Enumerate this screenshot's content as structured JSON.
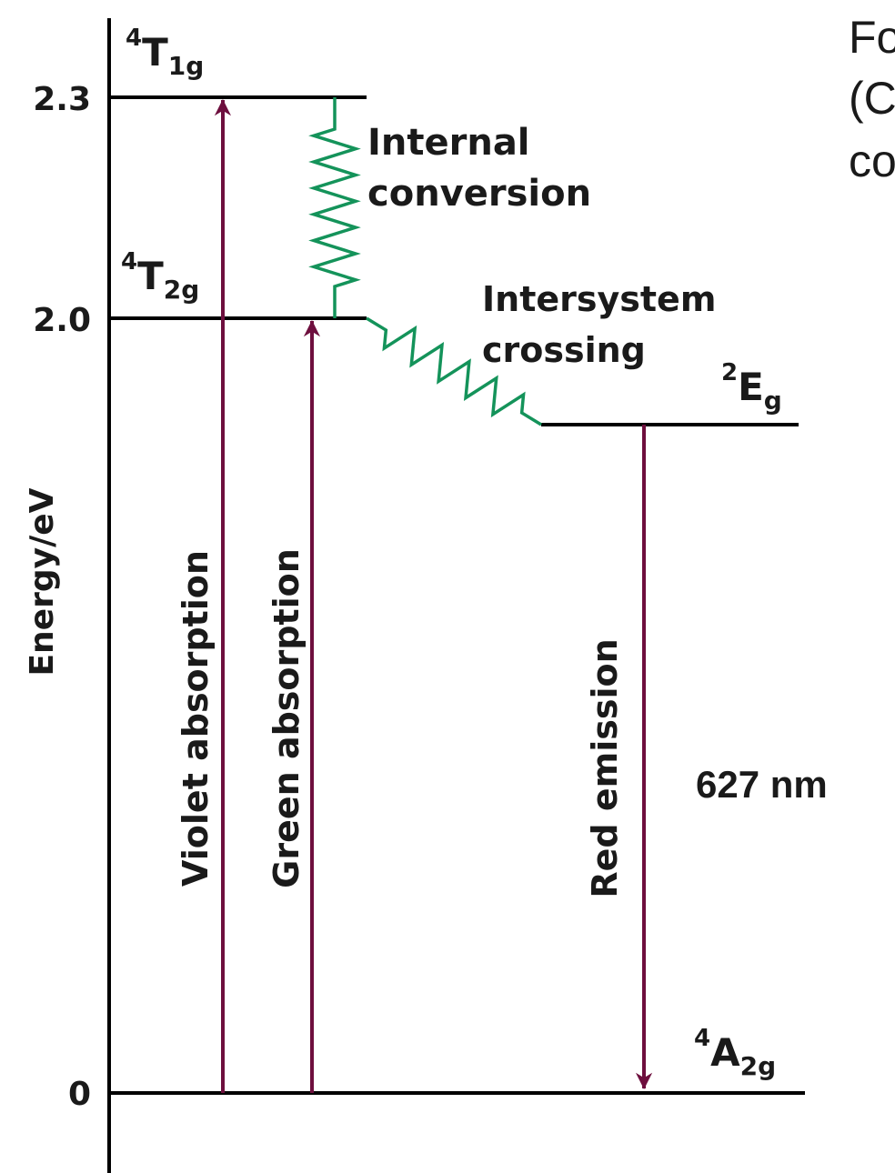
{
  "axis": {
    "title": "Energy/eV",
    "labels": [
      "2.3",
      "2.0",
      "0"
    ]
  },
  "levels": [
    {
      "sup": "4",
      "main": "T",
      "sub": "1g"
    },
    {
      "sup": "4",
      "main": "T",
      "sub": "2g"
    },
    {
      "sup": "2",
      "main": "E",
      "sub": "g"
    },
    {
      "sup": "4",
      "main": "A",
      "sub": "2g"
    }
  ],
  "processes": {
    "internal_conversion": [
      "Internal",
      "conversion"
    ],
    "intersystem_crossing": [
      "Intersystem",
      "crossing"
    ]
  },
  "transitions": [
    "Violet absorption",
    "Green absorption",
    "Red emission"
  ],
  "wavelength": "627 nm",
  "cropped_text": [
    "Fo",
    "(C",
    "co"
  ]
}
